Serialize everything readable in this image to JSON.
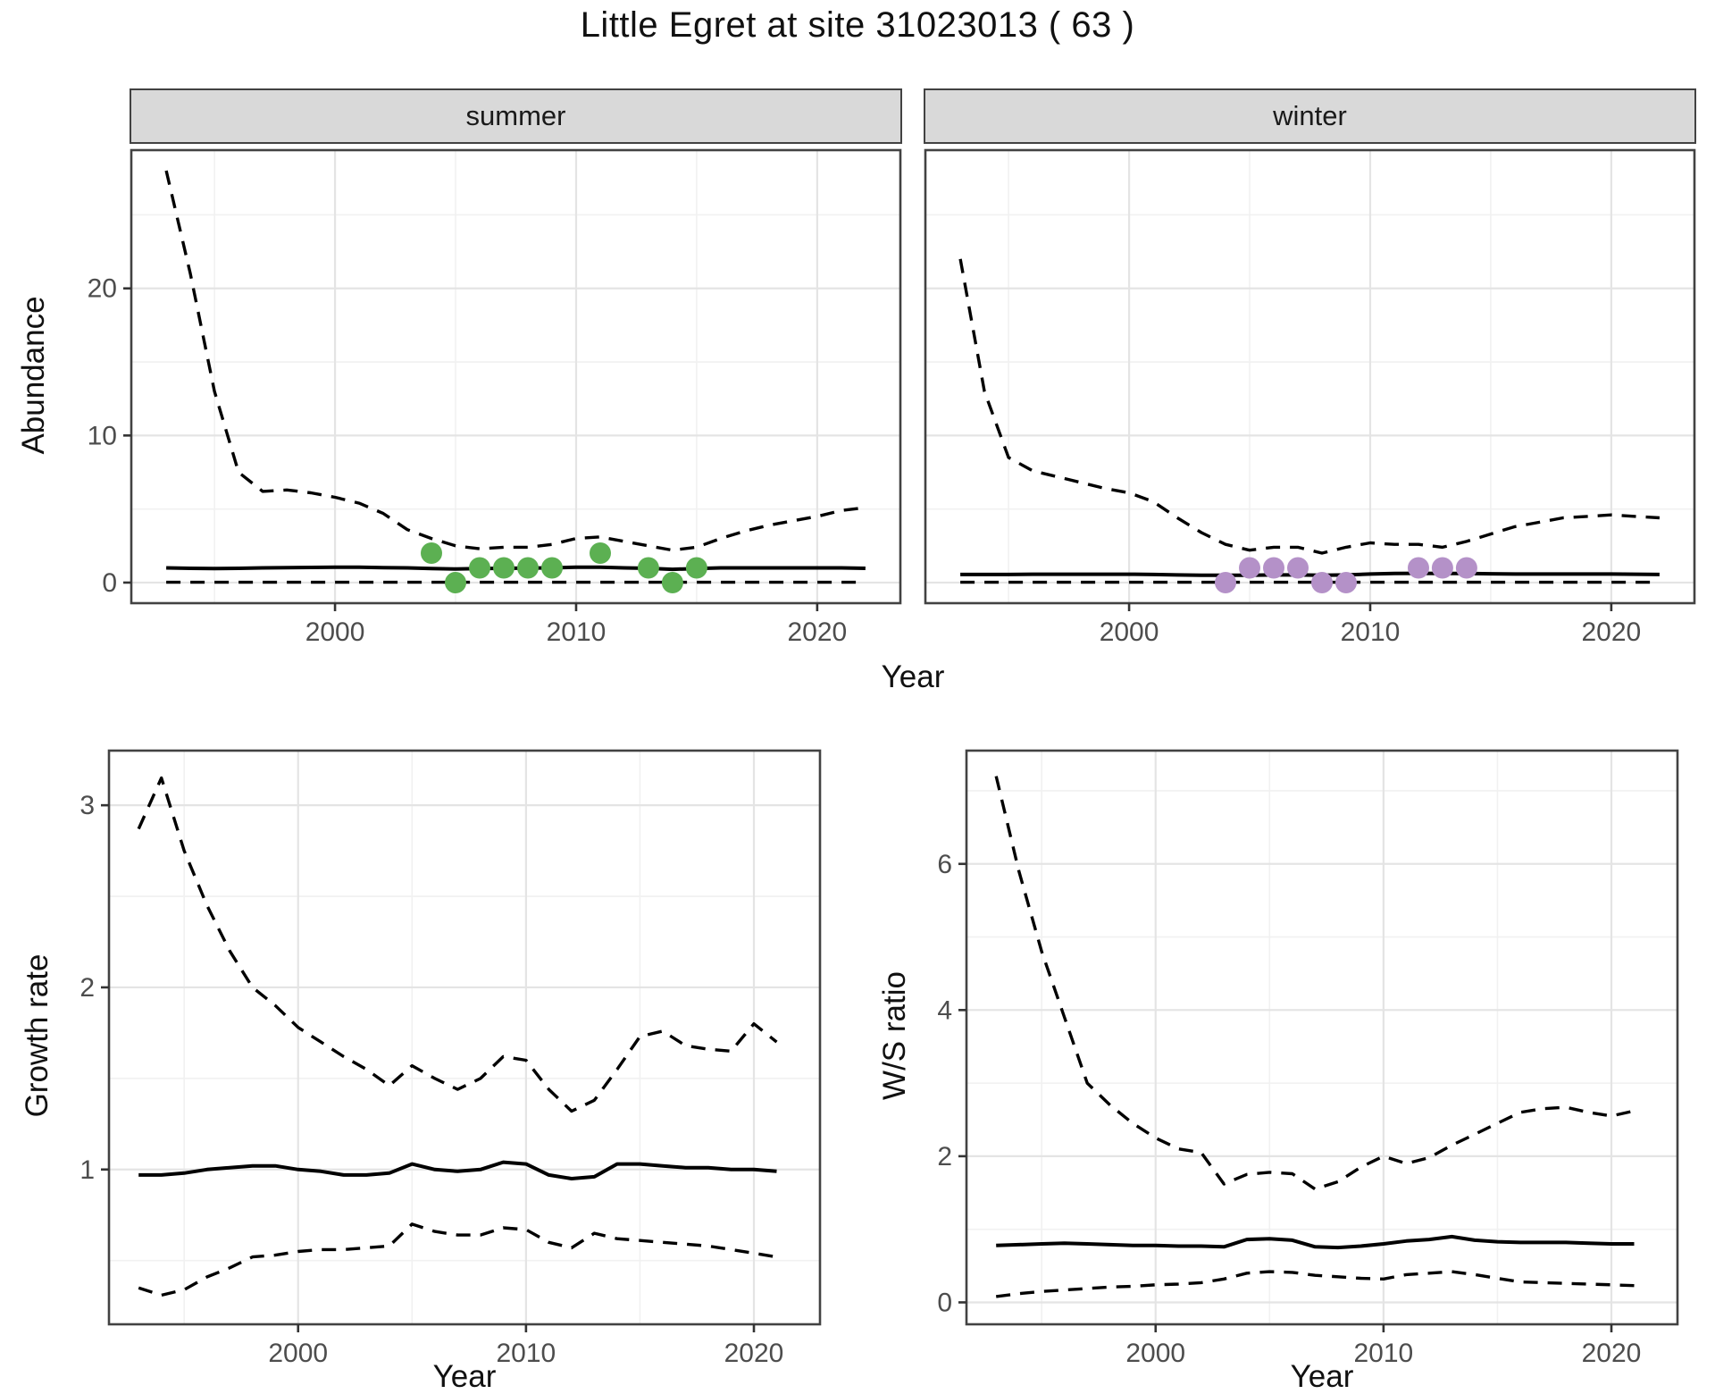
{
  "title": "Little Egret at site 31023013 ( 63 )",
  "facets": {
    "summer": "summer",
    "winter": "winter"
  },
  "axes": {
    "x": "Year",
    "y_top": "Abundance",
    "y_growth": "Growth rate",
    "y_ws": "W/S ratio"
  },
  "colors": {
    "summer_points": "#5cb052",
    "winter_points": "#b491c8",
    "line": "#000000",
    "grid_major": "#e4e4e4",
    "grid_minor": "#f1f1f1",
    "panel_border": "#424242",
    "tick_mark": "#333333",
    "tick_text": "#4d4d4d",
    "strip_bg": "#d9d9d9"
  },
  "chart_data": [
    {
      "id": "abundance-summer",
      "type": "line",
      "facet_label": "summer",
      "xlabel": "Year",
      "ylabel": "Abundance",
      "xlim": [
        1991.55,
        2023.45
      ],
      "ylim": [
        -1.4,
        29.4
      ],
      "xticks": [
        2000,
        2010,
        2020
      ],
      "xticks_minor": [
        1995,
        2005,
        2015
      ],
      "yticks": [
        0,
        10,
        20
      ],
      "yticks_minor": [
        5,
        15,
        25
      ],
      "years": [
        1993,
        1994,
        1995,
        1996,
        1997,
        1998,
        1999,
        2000,
        2001,
        2002,
        2003,
        2004,
        2005,
        2006,
        2007,
        2008,
        2009,
        2010,
        2011,
        2012,
        2013,
        2014,
        2015,
        2016,
        2017,
        2018,
        2019,
        2020,
        2021,
        2022
      ],
      "series": [
        {
          "name": "upper_ci",
          "style": "dashed",
          "values": [
            28,
            21,
            13,
            7.5,
            6.2,
            6.3,
            6.1,
            5.8,
            5.4,
            4.7,
            3.6,
            3.0,
            2.5,
            2.3,
            2.4,
            2.4,
            2.6,
            3.0,
            3.1,
            2.8,
            2.5,
            2.2,
            2.4,
            3.0,
            3.5,
            3.9,
            4.2,
            4.5,
            4.9,
            5.1
          ]
        },
        {
          "name": "median",
          "style": "solid",
          "values": [
            1.0,
            0.97,
            0.95,
            0.97,
            1.0,
            1.02,
            1.03,
            1.05,
            1.04,
            1.02,
            1.0,
            0.96,
            0.92,
            0.95,
            0.97,
            0.98,
            1.0,
            1.04,
            1.05,
            1.0,
            0.97,
            0.9,
            0.95,
            1.0,
            1.0,
            1.0,
            1.0,
            1.0,
            1.0,
            0.97
          ]
        },
        {
          "name": "lower_ci",
          "style": "dashed",
          "values": [
            0.02,
            0.02,
            0.02,
            0.02,
            0.02,
            0.02,
            0.02,
            0.02,
            0.02,
            0.02,
            0.02,
            0.02,
            0.02,
            0.02,
            0.02,
            0.02,
            0.02,
            0.02,
            0.02,
            0.02,
            0.02,
            0.02,
            0.02,
            0.02,
            0.02,
            0.02,
            0.02,
            0.02,
            0.02,
            0.02
          ]
        }
      ],
      "points": {
        "name": "observed_counts",
        "color": "#5cb052",
        "x": [
          2004,
          2005,
          2006,
          2007,
          2008,
          2009,
          2011,
          2013,
          2014,
          2015
        ],
        "y": [
          2,
          0,
          1,
          1,
          1,
          1,
          2,
          1,
          0,
          1
        ]
      }
    },
    {
      "id": "abundance-winter",
      "type": "line",
      "facet_label": "winter",
      "xlabel": "Year",
      "ylabel": "Abundance",
      "xlim": [
        1991.55,
        2023.45
      ],
      "ylim": [
        -1.4,
        29.4
      ],
      "xticks": [
        2000,
        2010,
        2020
      ],
      "xticks_minor": [
        1995,
        2005,
        2015
      ],
      "yticks": [
        0,
        10,
        20
      ],
      "yticks_minor": [
        5,
        15,
        25
      ],
      "years": [
        1993,
        1994,
        1995,
        1996,
        1997,
        1998,
        1999,
        2000,
        2001,
        2002,
        2003,
        2004,
        2005,
        2006,
        2007,
        2008,
        2009,
        2010,
        2011,
        2012,
        2013,
        2014,
        2015,
        2016,
        2017,
        2018,
        2019,
        2020,
        2021,
        2022
      ],
      "series": [
        {
          "name": "upper_ci",
          "style": "dashed",
          "values": [
            22,
            13,
            8.5,
            7.6,
            7.2,
            6.8,
            6.4,
            6.1,
            5.5,
            4.4,
            3.4,
            2.6,
            2.2,
            2.4,
            2.4,
            2.0,
            2.4,
            2.7,
            2.6,
            2.6,
            2.4,
            2.8,
            3.3,
            3.8,
            4.1,
            4.4,
            4.5,
            4.6,
            4.5,
            4.4
          ]
        },
        {
          "name": "median",
          "style": "solid",
          "values": [
            0.55,
            0.55,
            0.55,
            0.57,
            0.57,
            0.57,
            0.57,
            0.57,
            0.55,
            0.52,
            0.5,
            0.5,
            0.5,
            0.52,
            0.52,
            0.5,
            0.52,
            0.58,
            0.62,
            0.63,
            0.62,
            0.62,
            0.6,
            0.58,
            0.58,
            0.58,
            0.58,
            0.58,
            0.57,
            0.55
          ]
        },
        {
          "name": "lower_ci",
          "style": "dashed",
          "values": [
            0.02,
            0.02,
            0.02,
            0.02,
            0.02,
            0.02,
            0.02,
            0.02,
            0.02,
            0.02,
            0.02,
            0.02,
            0.02,
            0.02,
            0.02,
            0.02,
            0.02,
            0.02,
            0.02,
            0.02,
            0.02,
            0.02,
            0.02,
            0.02,
            0.02,
            0.02,
            0.02,
            0.02,
            0.02,
            0.02
          ]
        }
      ],
      "points": {
        "name": "observed_counts",
        "color": "#b491c8",
        "x": [
          2004,
          2005,
          2006,
          2007,
          2008,
          2009,
          2012,
          2013,
          2014
        ],
        "y": [
          0,
          1,
          1,
          1,
          0,
          0,
          1,
          1,
          1
        ]
      }
    },
    {
      "id": "growth-rate",
      "type": "line",
      "xlabel": "Year",
      "ylabel": "Growth rate",
      "xlim": [
        1991.7,
        2022.9
      ],
      "ylim": [
        0.15,
        3.3
      ],
      "xticks": [
        2000,
        2010,
        2020
      ],
      "xticks_minor": [
        1995,
        2005,
        2015
      ],
      "yticks": [
        1,
        2,
        3
      ],
      "yticks_minor": [
        0.5,
        1.5,
        2.5
      ],
      "years": [
        1993,
        1994,
        1995,
        1996,
        1997,
        1998,
        1999,
        2000,
        2001,
        2002,
        2003,
        2004,
        2005,
        2006,
        2007,
        2008,
        2009,
        2010,
        2011,
        2012,
        2013,
        2014,
        2015,
        2016,
        2017,
        2018,
        2019,
        2020,
        2021
      ],
      "series": [
        {
          "name": "upper_ci",
          "style": "dashed",
          "values": [
            2.87,
            3.15,
            2.75,
            2.45,
            2.2,
            2.0,
            1.9,
            1.78,
            1.7,
            1.62,
            1.55,
            1.46,
            1.57,
            1.5,
            1.44,
            1.5,
            1.62,
            1.6,
            1.44,
            1.32,
            1.38,
            1.55,
            1.73,
            1.76,
            1.68,
            1.66,
            1.65,
            1.8,
            1.7
          ]
        },
        {
          "name": "median",
          "style": "solid",
          "values": [
            0.97,
            0.97,
            0.98,
            1.0,
            1.01,
            1.02,
            1.02,
            1.0,
            0.99,
            0.97,
            0.97,
            0.98,
            1.03,
            1.0,
            0.99,
            1.0,
            1.04,
            1.03,
            0.97,
            0.95,
            0.96,
            1.03,
            1.03,
            1.02,
            1.01,
            1.01,
            1.0,
            1.0,
            0.99
          ]
        },
        {
          "name": "lower_ci",
          "style": "dashed",
          "values": [
            0.35,
            0.31,
            0.34,
            0.41,
            0.46,
            0.52,
            0.53,
            0.55,
            0.56,
            0.56,
            0.57,
            0.58,
            0.7,
            0.66,
            0.64,
            0.64,
            0.68,
            0.67,
            0.6,
            0.57,
            0.65,
            0.62,
            0.61,
            0.6,
            0.59,
            0.58,
            0.56,
            0.54,
            0.52
          ]
        }
      ]
    },
    {
      "id": "ws-ratio",
      "type": "line",
      "xlabel": "Year",
      "ylabel": "W/S ratio",
      "xlim": [
        1991.7,
        2022.9
      ],
      "ylim": [
        -0.3,
        7.55
      ],
      "xticks": [
        2000,
        2010,
        2020
      ],
      "xticks_minor": [
        1995,
        2005,
        2015
      ],
      "yticks": [
        0,
        2,
        4,
        6
      ],
      "yticks_minor": [
        1,
        3,
        5,
        7
      ],
      "years": [
        1993,
        1994,
        1995,
        1996,
        1997,
        1998,
        1999,
        2000,
        2001,
        2002,
        2003,
        2004,
        2005,
        2006,
        2007,
        2008,
        2009,
        2010,
        2011,
        2012,
        2013,
        2014,
        2015,
        2016,
        2017,
        2018,
        2019,
        2020,
        2021
      ],
      "series": [
        {
          "name": "upper_ci",
          "style": "dashed",
          "values": [
            7.2,
            5.9,
            4.8,
            3.9,
            3.0,
            2.7,
            2.45,
            2.25,
            2.1,
            2.05,
            1.62,
            1.75,
            1.78,
            1.76,
            1.55,
            1.65,
            1.85,
            2.0,
            1.9,
            1.98,
            2.15,
            2.3,
            2.45,
            2.6,
            2.65,
            2.67,
            2.6,
            2.55,
            2.62
          ]
        },
        {
          "name": "median",
          "style": "solid",
          "values": [
            0.78,
            0.79,
            0.8,
            0.81,
            0.8,
            0.79,
            0.78,
            0.78,
            0.77,
            0.77,
            0.76,
            0.86,
            0.87,
            0.85,
            0.76,
            0.75,
            0.77,
            0.8,
            0.84,
            0.86,
            0.9,
            0.85,
            0.83,
            0.82,
            0.82,
            0.82,
            0.81,
            0.8,
            0.8
          ]
        },
        {
          "name": "lower_ci",
          "style": "dashed",
          "values": [
            0.08,
            0.12,
            0.15,
            0.17,
            0.19,
            0.21,
            0.22,
            0.24,
            0.25,
            0.27,
            0.32,
            0.4,
            0.42,
            0.41,
            0.37,
            0.35,
            0.33,
            0.32,
            0.38,
            0.4,
            0.42,
            0.38,
            0.33,
            0.28,
            0.27,
            0.26,
            0.25,
            0.24,
            0.23
          ]
        }
      ]
    }
  ]
}
